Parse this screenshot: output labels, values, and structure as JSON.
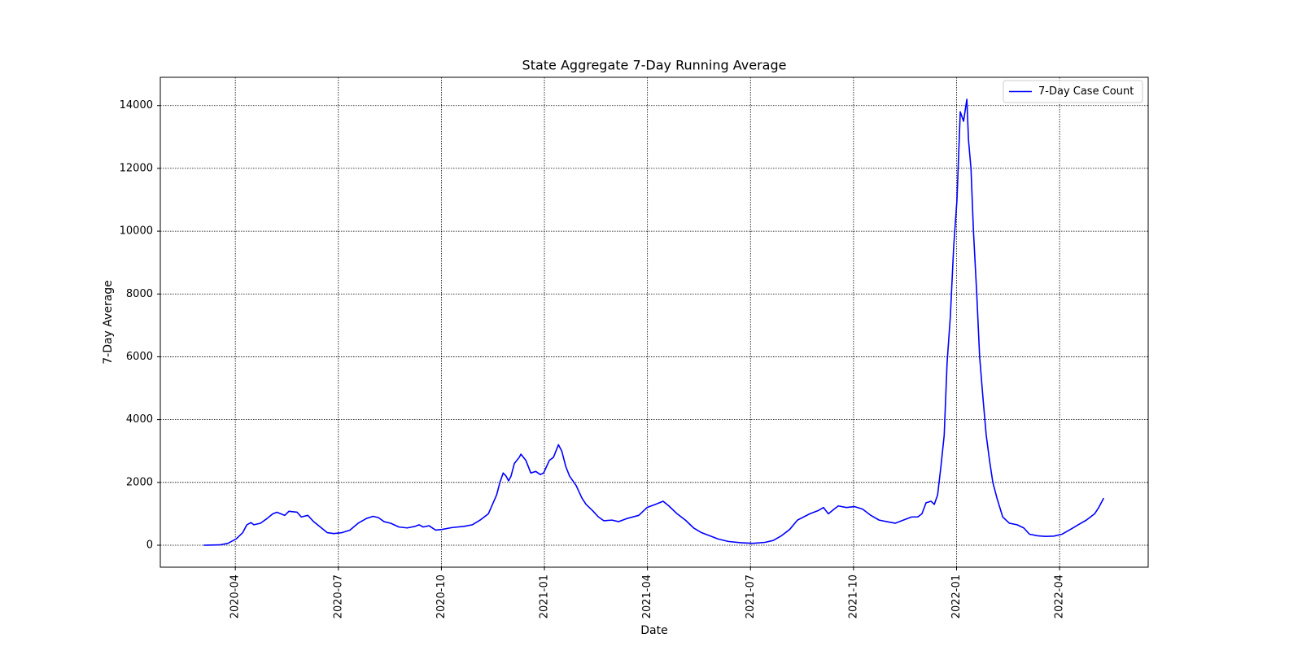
{
  "chart_data": {
    "type": "line",
    "title": "State Aggregate 7-Day Running Average",
    "xlabel": "Date",
    "ylabel": "7-Day Average",
    "x": [
      2020.173,
      2020.212,
      2020.232,
      2020.252,
      2020.268,
      2020.278,
      2020.288,
      2020.295,
      2020.311,
      2020.327,
      2020.341,
      2020.351,
      2020.37,
      2020.38,
      2020.4,
      2020.41,
      2020.426,
      2020.44,
      2020.459,
      2020.473,
      2020.489,
      2020.509,
      2020.528,
      2020.548,
      2020.568,
      2020.584,
      2020.597,
      2020.611,
      2020.627,
      2020.647,
      2020.667,
      2020.686,
      2020.696,
      2020.706,
      2020.72,
      2020.736,
      2020.751,
      2020.775,
      2020.805,
      2020.825,
      2020.844,
      2020.864,
      2020.874,
      2020.884,
      2020.892,
      2020.9,
      2020.907,
      2020.913,
      2020.919,
      2020.927,
      2020.939,
      2020.943,
      2020.955,
      2020.967,
      2020.979,
      2020.99,
      2020.998,
      2021.012,
      2021.022,
      2021.034,
      2021.042,
      2021.052,
      2021.061,
      2021.077,
      2021.091,
      2021.101,
      2021.117,
      2021.131,
      2021.144,
      2021.164,
      2021.18,
      2021.2,
      2021.229,
      2021.249,
      2021.269,
      2021.288,
      2021.302,
      2021.322,
      2021.342,
      2021.362,
      2021.381,
      2021.401,
      2021.421,
      2021.446,
      2021.476,
      2021.506,
      2021.535,
      2021.555,
      2021.575,
      2021.595,
      2021.614,
      2021.644,
      2021.664,
      2021.677,
      2021.689,
      2021.703,
      2021.713,
      2021.733,
      2021.752,
      2021.772,
      2021.792,
      2021.812,
      2021.831,
      2021.851,
      2021.871,
      2021.891,
      2021.906,
      2021.916,
      2021.926,
      2021.938,
      2021.946,
      2021.954,
      2021.962,
      2021.97,
      2021.977,
      2021.985,
      2021.993,
      2022.001,
      2022.009,
      2022.017,
      2022.025,
      2022.029,
      2022.035,
      2022.041,
      2022.049,
      2022.056,
      2022.064,
      2022.072,
      2022.08,
      2022.088,
      2022.098,
      2022.112,
      2022.128,
      2022.147,
      2022.163,
      2022.177,
      2022.197,
      2022.216,
      2022.236,
      2022.256,
      2022.276,
      2022.295,
      2022.315,
      2022.335,
      2022.345,
      2022.357
    ],
    "series": [
      {
        "name": "7-Day Case Count",
        "color": "#0000ff",
        "values": [
          0,
          10,
          60,
          200,
          400,
          650,
          720,
          650,
          700,
          850,
          1000,
          1050,
          950,
          1080,
          1050,
          900,
          950,
          750,
          550,
          400,
          370,
          400,
          480,
          700,
          850,
          920,
          880,
          750,
          700,
          580,
          550,
          600,
          650,
          580,
          620,
          480,
          500,
          560,
          600,
          650,
          800,
          1000,
          1300,
          1600,
          2000,
          2300,
          2200,
          2050,
          2200,
          2600,
          2800,
          2900,
          2700,
          2300,
          2350,
          2250,
          2300,
          2700,
          2800,
          3200,
          3000,
          2500,
          2200,
          1900,
          1500,
          1300,
          1100,
          900,
          780,
          800,
          750,
          850,
          950,
          1200,
          1300,
          1400,
          1250,
          1000,
          800,
          550,
          400,
          300,
          200,
          120,
          80,
          60,
          90,
          150,
          300,
          500,
          800,
          1000,
          1100,
          1200,
          1000,
          1150,
          1250,
          1200,
          1230,
          1150,
          950,
          800,
          750,
          700,
          800,
          900,
          900,
          1000,
          1350,
          1400,
          1300,
          1600,
          2500,
          3500,
          5800,
          7300,
          9500,
          11000,
          13800,
          13500,
          14200,
          12900,
          12000,
          10000,
          8000,
          6000,
          4700,
          3500,
          2700,
          2000,
          1500,
          900,
          700,
          650,
          550,
          350,
          300,
          280,
          290,
          350,
          500,
          650,
          800,
          1000,
          1200,
          1500
        ]
      }
    ],
    "xlim": [
      2020.068,
      2022.465
    ],
    "xticks": [
      {
        "value": 2020.25,
        "label": "2020-04"
      },
      {
        "value": 2020.5,
        "label": "2020-07"
      },
      {
        "value": 2020.75,
        "label": "2020-10"
      },
      {
        "value": 2021.0,
        "label": "2021-01"
      },
      {
        "value": 2021.25,
        "label": "2021-04"
      },
      {
        "value": 2021.5,
        "label": "2021-07"
      },
      {
        "value": 2021.75,
        "label": "2021-10"
      },
      {
        "value": 2022.0,
        "label": "2022-01"
      },
      {
        "value": 2022.25,
        "label": "2022-04"
      }
    ],
    "ylim": [
      -700,
      14900
    ],
    "yticks": [
      0,
      2000,
      4000,
      6000,
      8000,
      10000,
      12000,
      14000
    ],
    "grid": true,
    "legend": "upper right"
  }
}
